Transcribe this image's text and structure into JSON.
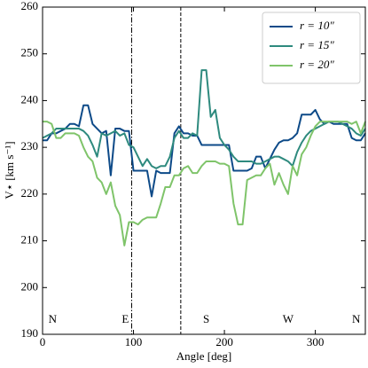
{
  "chart_data": {
    "type": "line",
    "xlabel": "Angle [deg]",
    "ylabel": "V⋆ [km s⁻¹]",
    "x": [
      0,
      5,
      10,
      15,
      20,
      25,
      30,
      35,
      40,
      45,
      50,
      55,
      60,
      65,
      70,
      75,
      80,
      85,
      90,
      95,
      100,
      105,
      110,
      115,
      120,
      125,
      130,
      135,
      140,
      145,
      150,
      155,
      160,
      165,
      170,
      175,
      180,
      185,
      190,
      195,
      200,
      205,
      210,
      215,
      220,
      225,
      230,
      235,
      240,
      245,
      250,
      255,
      260,
      265,
      270,
      275,
      280,
      285,
      290,
      295,
      300,
      305,
      310,
      315,
      320,
      325,
      330,
      335,
      340,
      345,
      350,
      355
    ],
    "series": [
      {
        "name": "r = 10″",
        "color": "#0d4a88",
        "values": [
          231.5,
          231.5,
          233,
          233,
          233.5,
          234,
          235,
          235,
          234.5,
          239,
          239,
          235,
          234,
          233,
          233.5,
          224,
          234,
          234,
          233.5,
          233.5,
          225,
          225,
          225,
          225,
          219.5,
          225,
          224.5,
          224.5,
          224.5,
          233,
          234.5,
          233,
          233,
          232.5,
          232.5,
          230.5,
          230.5,
          230.5,
          230.5,
          230.5,
          230.5,
          230.5,
          225,
          225,
          225,
          225,
          225.5,
          228,
          228,
          225.5,
          227.5,
          229.5,
          231,
          231.5,
          231.5,
          232,
          233,
          237,
          237,
          237,
          238,
          236,
          235,
          235.5,
          235,
          235,
          235,
          235,
          232,
          231.5,
          231.5,
          233
        ]
      },
      {
        "name": "r = 15″",
        "color": "#2e8a7e",
        "values": [
          232,
          232.5,
          233,
          234,
          234,
          234,
          234,
          234,
          234,
          233.5,
          232.5,
          230.5,
          228,
          233,
          232.5,
          233,
          233.5,
          232.5,
          233,
          230.5,
          230,
          228,
          226,
          227.5,
          226,
          225.5,
          226,
          226,
          228,
          232,
          233.5,
          232,
          232,
          233,
          232.5,
          246.5,
          246.5,
          236.5,
          238,
          232,
          230.5,
          229.5,
          228,
          227,
          227,
          227,
          227,
          226.5,
          226.5,
          227,
          227.5,
          228,
          228,
          227.5,
          227,
          226,
          229,
          231,
          232.5,
          233.5,
          234,
          234.5,
          235,
          235.5,
          235.5,
          235.5,
          235,
          234.5,
          234,
          233,
          232.5,
          234
        ]
      },
      {
        "name": "r = 20″",
        "color": "#7fc46a",
        "values": [
          235.5,
          235.5,
          235,
          232,
          232,
          233,
          233,
          233,
          232.5,
          230,
          228,
          227,
          223.5,
          222.5,
          220,
          222.5,
          217.5,
          215.5,
          209,
          214,
          214,
          213.5,
          214.5,
          215,
          215,
          215,
          218,
          221.5,
          221.5,
          224,
          224,
          225.5,
          226,
          224.5,
          224.5,
          226,
          227,
          227,
          227,
          226.5,
          226.5,
          226,
          218,
          213.5,
          213.5,
          223,
          223.5,
          224,
          224,
          225.5,
          226.5,
          222,
          224.5,
          222,
          220,
          226,
          224,
          228.5,
          230,
          232.5,
          234.5,
          235.5,
          235.5,
          235.5,
          235.5,
          235.5,
          235.5,
          235.5,
          235,
          235.5,
          233,
          235.5
        ]
      }
    ],
    "xlim": [
      0,
      355
    ],
    "ylim": [
      190,
      260
    ],
    "xticks": [
      0,
      100,
      200,
      300
    ],
    "yticks": [
      190,
      200,
      210,
      220,
      230,
      240,
      250,
      260
    ],
    "vlines": [
      {
        "x": 98,
        "style": "dashdot"
      },
      {
        "x": 152,
        "style": "dashed"
      }
    ],
    "annotations": [
      {
        "text": "N",
        "x": 11,
        "y": 193
      },
      {
        "text": "E",
        "x": 91,
        "y": 193
      },
      {
        "text": "S",
        "x": 180,
        "y": 193
      },
      {
        "text": "W",
        "x": 270,
        "y": 193
      },
      {
        "text": "N",
        "x": 345,
        "y": 193
      }
    ],
    "legend": "upper right"
  }
}
